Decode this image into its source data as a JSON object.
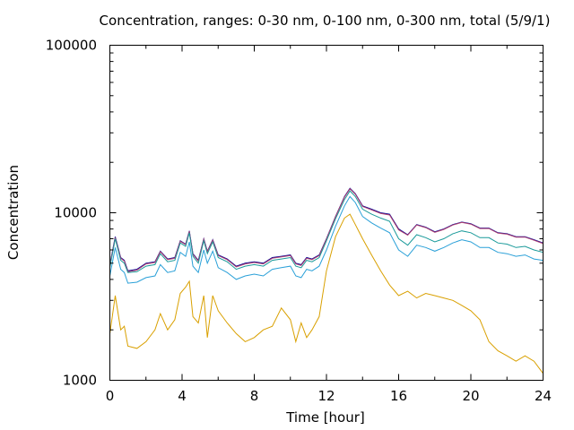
{
  "chart_data": {
    "type": "line",
    "title": "Concentration, ranges: 0-30 nm, 0-100 nm, 0-300 nm, total (5/9/1)",
    "xlabel": "Time [hour]",
    "ylabel": "Concentration",
    "xlim": [
      0,
      24
    ],
    "ylim": [
      1000,
      100000
    ],
    "yscale": "log",
    "grid": false,
    "legend": "none",
    "x_ticks": [
      "0",
      "4",
      "8",
      "12",
      "16",
      "20",
      "24"
    ],
    "x_tick_values": [
      0,
      4,
      8,
      12,
      16,
      20,
      24
    ],
    "y_ticks": [
      "1000",
      "10000",
      "100000"
    ],
    "y_tick_values": [
      1000,
      10000,
      100000
    ],
    "x": [
      0,
      0.3,
      0.6,
      0.8,
      1.0,
      1.5,
      2.0,
      2.5,
      2.8,
      3.2,
      3.6,
      3.9,
      4.2,
      4.4,
      4.6,
      4.9,
      5.2,
      5.4,
      5.7,
      6.0,
      6.5,
      7.0,
      7.5,
      8.0,
      8.5,
      9.0,
      9.5,
      10.0,
      10.3,
      10.6,
      10.9,
      11.2,
      11.6,
      12.0,
      12.5,
      13.0,
      13.3,
      13.6,
      14.0,
      14.5,
      15.0,
      15.5,
      16.0,
      16.5,
      17.0,
      17.5,
      18.0,
      18.5,
      19.0,
      19.5,
      20.0,
      20.5,
      21.0,
      21.5,
      22.0,
      22.5,
      23.0,
      23.5,
      24.0
    ],
    "series": [
      {
        "color": "#0a0a96",
        "values": [
          4900,
          7200,
          5400,
          5200,
          4500,
          4600,
          5000,
          5100,
          5900,
          5300,
          5400,
          6800,
          6500,
          7800,
          5700,
          5200,
          7000,
          5900,
          6900,
          5600,
          5300,
          4800,
          5000,
          5100,
          5000,
          5400,
          5500,
          5600,
          5000,
          4900,
          5400,
          5300,
          5600,
          7000,
          9500,
          12500,
          14000,
          13000,
          11000,
          10500,
          10000,
          9800,
          8000,
          7400,
          8500,
          8200,
          7700,
          8000,
          8500,
          8800,
          8600,
          8100,
          8100,
          7600,
          7500,
          7200,
          7200,
          6900,
          6600
        ]
      },
      {
        "color": "#b04070",
        "values": [
          4850,
          7100,
          5350,
          5150,
          4450,
          4550,
          4950,
          5050,
          5850,
          5250,
          5350,
          6750,
          6450,
          7750,
          5650,
          5150,
          6950,
          5850,
          6850,
          5550,
          5250,
          4750,
          4950,
          5050,
          4950,
          5350,
          5450,
          5550,
          4950,
          4850,
          5350,
          5250,
          5550,
          6950,
          9450,
          12400,
          13900,
          12900,
          10900,
          10400,
          9900,
          9700,
          7900,
          7350,
          8450,
          8150,
          7650,
          7950,
          8450,
          8750,
          8550,
          8050,
          8050,
          7550,
          7450,
          7150,
          7150,
          6850,
          6550
        ]
      },
      {
        "color": "#1a9a9a",
        "values": [
          4700,
          7000,
          5200,
          5000,
          4400,
          4450,
          4800,
          4900,
          5700,
          5100,
          5200,
          6600,
          6300,
          7600,
          5500,
          5000,
          6800,
          5700,
          6700,
          5400,
          5100,
          4600,
          4800,
          4900,
          4800,
          5200,
          5300,
          5400,
          4800,
          4700,
          5200,
          5100,
          5400,
          6800,
          9200,
          12000,
          13500,
          12500,
          10500,
          9800,
          9300,
          8900,
          7000,
          6400,
          7400,
          7100,
          6700,
          7000,
          7500,
          7800,
          7600,
          7100,
          7100,
          6600,
          6500,
          6200,
          6300,
          6000,
          5800
        ]
      },
      {
        "color": "#2aa0d8",
        "values": [
          4200,
          6200,
          4600,
          4400,
          3800,
          3850,
          4100,
          4200,
          4900,
          4400,
          4500,
          5800,
          5500,
          6700,
          4800,
          4400,
          6000,
          5000,
          5900,
          4700,
          4400,
          4000,
          4200,
          4300,
          4200,
          4600,
          4700,
          4800,
          4200,
          4100,
          4600,
          4500,
          4800,
          6000,
          8300,
          11000,
          12500,
          11500,
          9500,
          8700,
          8100,
          7600,
          6000,
          5500,
          6400,
          6200,
          5900,
          6200,
          6600,
          6900,
          6700,
          6200,
          6200,
          5800,
          5700,
          5500,
          5600,
          5300,
          5200
        ]
      },
      {
        "color": "#d9a000",
        "values": [
          1900,
          3200,
          2000,
          2100,
          1600,
          1550,
          1700,
          2000,
          2500,
          2000,
          2300,
          3300,
          3600,
          3900,
          2400,
          2200,
          3200,
          1800,
          3200,
          2600,
          2200,
          1900,
          1700,
          1800,
          2000,
          2100,
          2700,
          2300,
          1700,
          2200,
          1800,
          2000,
          2400,
          4500,
          7200,
          9300,
          9800,
          8500,
          7000,
          5600,
          4500,
          3700,
          3200,
          3400,
          3100,
          3300,
          3200,
          3100,
          3000,
          2800,
          2600,
          2300,
          1700,
          1500,
          1400,
          1300,
          1400,
          1300,
          1100
        ]
      }
    ]
  }
}
